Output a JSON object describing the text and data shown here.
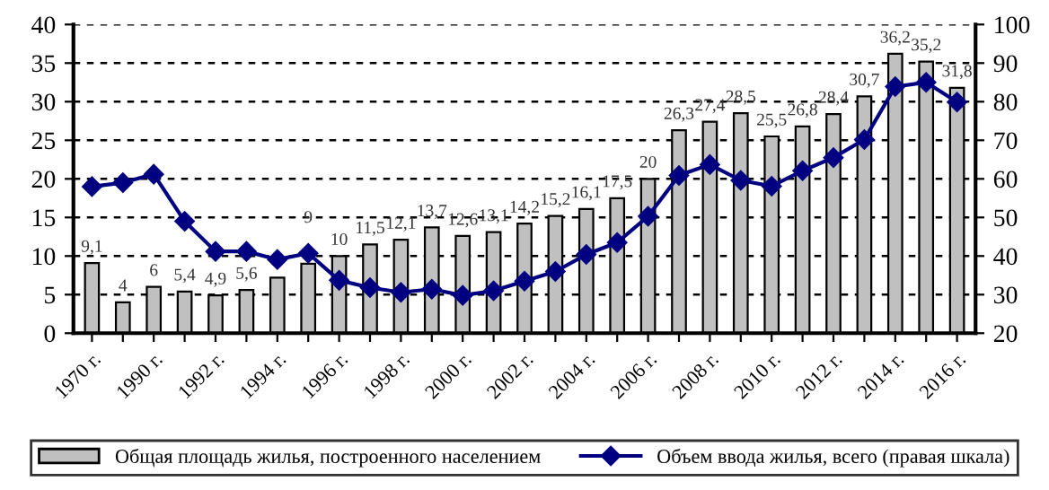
{
  "chart_data": {
    "type": "bar",
    "categories": [
      "1970 г.",
      null,
      "1990 г.",
      null,
      "1992 г.",
      null,
      "1994 г.",
      null,
      "1996 г.",
      null,
      "1998 г.",
      null,
      "2000 г.",
      null,
      "2002 г.",
      null,
      "2004 г.",
      null,
      "2006 г.",
      null,
      "2008 г.",
      null,
      "2010 г.",
      null,
      "2012 г.",
      null,
      "2014 г.",
      null,
      "2016 г."
    ],
    "series": [
      {
        "name": "Общая площадь жилья, построенного населением",
        "color": "#c0c0c0",
        "values": [
          9.1,
          4,
          6,
          5.4,
          4.9,
          5.6,
          7.2,
          9,
          10,
          11.5,
          12.1,
          13.7,
          12.6,
          13.1,
          14.2,
          15.2,
          16.1,
          17.5,
          20,
          26.3,
          27.4,
          28.5,
          25.5,
          26.8,
          28.4,
          30.7,
          36.2,
          35.2,
          31.8
        ],
        "value_labels": [
          "9,1",
          "4",
          "6",
          "5,4",
          "4,9",
          "5,6",
          null,
          "9",
          "10",
          "11,5",
          "12,1",
          "13,7",
          "12,6",
          "13,1",
          "14,2",
          "15,2",
          "16,1",
          "17,5",
          "20",
          "26,3",
          "27,4",
          "28,5",
          "25,5",
          "26,8",
          "28,4",
          "30,7",
          "36,2",
          "35,2",
          "31,8"
        ]
      },
      {
        "name": "Объем ввода жилья, всего (правая шкала)",
        "type": "line",
        "axis": "y2",
        "color": "#000080",
        "marker": "diamond",
        "values": [
          58,
          59,
          61.2,
          49,
          41.2,
          41.2,
          39.1,
          40.7,
          33.7,
          31.8,
          30.6,
          31.4,
          29.8,
          31,
          33.5,
          36,
          40.4,
          43.5,
          50.3,
          60.9,
          63.7,
          59.6,
          58.1,
          62.1,
          65.5,
          70.2,
          83.9,
          85,
          79.9
        ]
      }
    ],
    "ylim": [
      0,
      40
    ],
    "yticks": [
      0,
      5,
      10,
      15,
      20,
      25,
      30,
      35,
      40
    ],
    "y2lim": [
      20,
      100
    ],
    "y2ticks": [
      20,
      30,
      40,
      50,
      60,
      70,
      80,
      90,
      100
    ],
    "grid": "y",
    "legend": "bottom"
  }
}
